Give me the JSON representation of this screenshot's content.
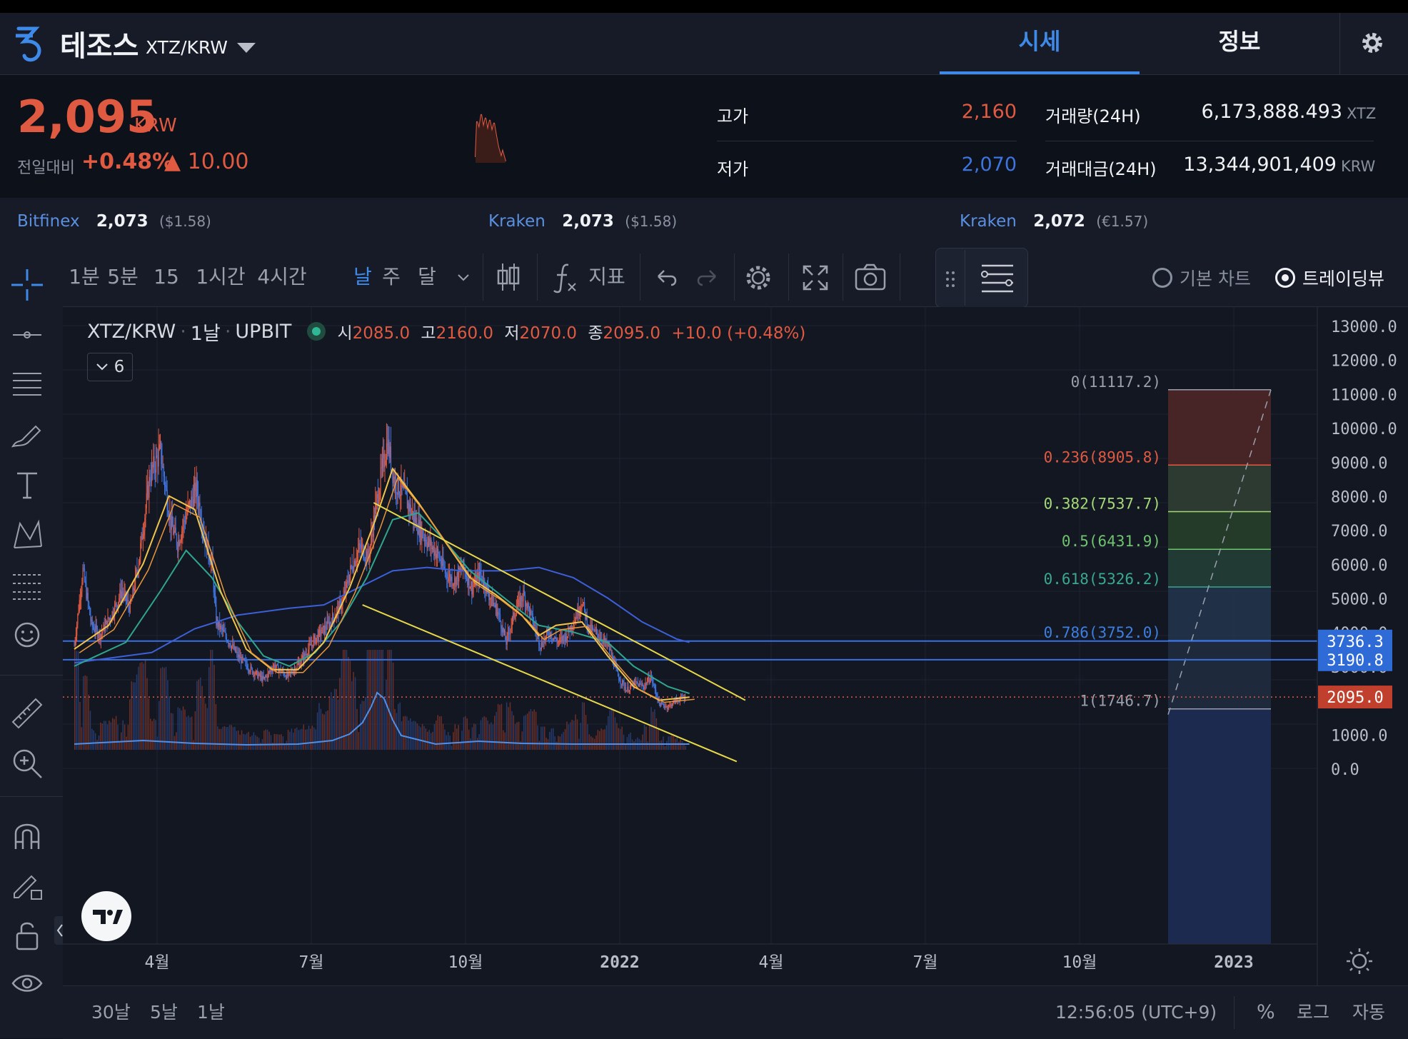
{
  "header": {
    "coin_name": "테조스",
    "pair": "XTZ/KRW",
    "tabs": [
      {
        "label": "시세",
        "active": true
      },
      {
        "label": "정보",
        "active": false
      }
    ],
    "icons": [
      "tezos-logo-icon",
      "chevron-down-icon",
      "gear-icon"
    ]
  },
  "ticker": {
    "price": "2,095",
    "currency": "KRW",
    "change_label": "전일대비",
    "change_pct": "+0.48%",
    "change_abs": "▲ 10.00",
    "high_label": "고가",
    "high": "2,160",
    "low_label": "저가",
    "low": "2,070",
    "volume_label": "거래량(24H)",
    "volume": "6,173,888.493",
    "volume_unit": "XTZ",
    "value_label": "거래대금(24H)",
    "value": "13,344,901,409",
    "value_unit": "KRW"
  },
  "exchanges": [
    {
      "name": "Bitfinex",
      "price": "2,073",
      "sub": "($1.58)"
    },
    {
      "name": "Kraken",
      "price": "2,073",
      "sub": "($1.58)"
    },
    {
      "name": "Kraken",
      "price": "2,072",
      "sub": "(€1.57)"
    }
  ],
  "toolbar": {
    "intervals": [
      "1분",
      "5분",
      "15분",
      "1시간",
      "4시간",
      "날",
      "주",
      "달"
    ],
    "active_interval": "날",
    "indicators_label": "지표",
    "modes": [
      {
        "label": "기본 차트",
        "selected": false
      },
      {
        "label": "트레이딩뷰",
        "selected": true
      }
    ]
  },
  "legend": {
    "symbol": "XTZ/KRW",
    "interval": "1날",
    "exchange": "UPBIT",
    "o_label": "시",
    "o": "2085.0",
    "h_label": "고",
    "h": "2160.0",
    "l_label": "저",
    "l": "2070.0",
    "c_label": "종",
    "c": "2095.0",
    "chg": "+10.0 (+0.48%)",
    "indicator_count": "6"
  },
  "bottombar": {
    "ranges": [
      "30날",
      "5날",
      "1날"
    ],
    "clock": "12:56:05 (UTC+9)",
    "percent": "%",
    "log": "로그",
    "auto": "자동"
  },
  "colors": {
    "up": "#e05a42",
    "down": "#3e74e0",
    "accent": "#2f6bd6",
    "trendline": "#e7d84a",
    "ma_short": "#f2c54a",
    "ma_mid": "#2fa58e",
    "ma_long": "#3d5fd8"
  },
  "chart_data": {
    "type": "candlestick",
    "price_axis": [
      "13000.0",
      "12000.0",
      "11000.0",
      "10000.0",
      "9000.0",
      "8000.0",
      "7000.0",
      "6000.0",
      "5000.0",
      "4000.0",
      "3000.0",
      "1000.0",
      "0.0"
    ],
    "ylim": [
      0,
      13000
    ],
    "time_axis": [
      "4월",
      "7월",
      "10월",
      "2022",
      "4월",
      "7월",
      "10월",
      "2023"
    ],
    "price_path": [
      [
        0,
        3600
      ],
      [
        10,
        5800
      ],
      [
        20,
        4200
      ],
      [
        30,
        3900
      ],
      [
        45,
        4600
      ],
      [
        55,
        5200
      ],
      [
        65,
        4700
      ],
      [
        75,
        6100
      ],
      [
        88,
        8600
      ],
      [
        100,
        9300
      ],
      [
        112,
        7200
      ],
      [
        120,
        6600
      ],
      [
        132,
        7600
      ],
      [
        142,
        8200
      ],
      [
        152,
        6700
      ],
      [
        160,
        6000
      ],
      [
        165,
        4300
      ],
      [
        178,
        3800
      ],
      [
        190,
        3300
      ],
      [
        205,
        2900
      ],
      [
        220,
        2600
      ],
      [
        232,
        3000
      ],
      [
        248,
        2700
      ],
      [
        262,
        3100
      ],
      [
        280,
        3800
      ],
      [
        298,
        4300
      ],
      [
        312,
        4900
      ],
      [
        322,
        5900
      ],
      [
        332,
        6500
      ],
      [
        342,
        6200
      ],
      [
        350,
        7600
      ],
      [
        358,
        8800
      ],
      [
        364,
        9600
      ],
      [
        372,
        8400
      ],
      [
        382,
        8100
      ],
      [
        392,
        7500
      ],
      [
        402,
        7000
      ],
      [
        412,
        6600
      ],
      [
        422,
        6300
      ],
      [
        432,
        5700
      ],
      [
        442,
        5500
      ],
      [
        452,
        5900
      ],
      [
        462,
        5300
      ],
      [
        472,
        5700
      ],
      [
        482,
        5100
      ],
      [
        492,
        4600
      ],
      [
        502,
        3700
      ],
      [
        512,
        4600
      ],
      [
        522,
        5100
      ],
      [
        532,
        4400
      ],
      [
        542,
        3600
      ],
      [
        552,
        4000
      ],
      [
        562,
        3700
      ],
      [
        572,
        3900
      ],
      [
        582,
        4400
      ],
      [
        590,
        4900
      ],
      [
        598,
        4100
      ],
      [
        610,
        3900
      ],
      [
        622,
        3500
      ],
      [
        632,
        2700
      ],
      [
        642,
        2300
      ],
      [
        652,
        2500
      ],
      [
        662,
        2400
      ],
      [
        670,
        2700
      ],
      [
        680,
        1900
      ],
      [
        690,
        1800
      ],
      [
        700,
        2000
      ],
      [
        710,
        2095
      ]
    ],
    "series": [
      {
        "name": "MA long",
        "values": [
          [
            0,
            3100
          ],
          [
            90,
            3400
          ],
          [
            140,
            4100
          ],
          [
            190,
            4500
          ],
          [
            250,
            4700
          ],
          [
            290,
            4800
          ],
          [
            330,
            5300
          ],
          [
            370,
            5800
          ],
          [
            410,
            5900
          ],
          [
            450,
            5800
          ],
          [
            500,
            5800
          ],
          [
            540,
            5900
          ],
          [
            580,
            5600
          ],
          [
            620,
            5000
          ],
          [
            660,
            4300
          ],
          [
            700,
            3800
          ],
          [
            715,
            3700
          ]
        ]
      },
      {
        "name": "MA mid",
        "values": [
          [
            0,
            3000
          ],
          [
            60,
            3700
          ],
          [
            100,
            5200
          ],
          [
            130,
            6400
          ],
          [
            160,
            5600
          ],
          [
            190,
            4300
          ],
          [
            220,
            3300
          ],
          [
            250,
            3000
          ],
          [
            280,
            3400
          ],
          [
            310,
            4300
          ],
          [
            340,
            5600
          ],
          [
            370,
            7300
          ],
          [
            400,
            7500
          ],
          [
            430,
            6700
          ],
          [
            460,
            5800
          ],
          [
            500,
            5000
          ],
          [
            540,
            4200
          ],
          [
            580,
            4000
          ],
          [
            620,
            3700
          ],
          [
            650,
            3000
          ],
          [
            690,
            2400
          ],
          [
            715,
            2200
          ]
        ]
      },
      {
        "name": "MA short",
        "values": [
          [
            0,
            3500
          ],
          [
            40,
            4200
          ],
          [
            80,
            6000
          ],
          [
            110,
            8000
          ],
          [
            140,
            7600
          ],
          [
            170,
            5200
          ],
          [
            200,
            3500
          ],
          [
            230,
            2900
          ],
          [
            260,
            2900
          ],
          [
            290,
            3700
          ],
          [
            320,
            5300
          ],
          [
            350,
            7300
          ],
          [
            370,
            8800
          ],
          [
            400,
            7800
          ],
          [
            430,
            6700
          ],
          [
            460,
            5600
          ],
          [
            490,
            5100
          ],
          [
            520,
            4500
          ],
          [
            540,
            3900
          ],
          [
            560,
            4200
          ],
          [
            590,
            4300
          ],
          [
            620,
            3300
          ],
          [
            650,
            2400
          ],
          [
            680,
            2000
          ],
          [
            715,
            2090
          ]
        ]
      }
    ],
    "horizontal_lines": [
      {
        "price": 3736.3,
        "label": "3736.3"
      },
      {
        "price": 3190.8,
        "label": "3190.8"
      },
      {
        "price": 2095.0,
        "label": "2095.0",
        "style": "dotted"
      }
    ],
    "trendlines": [
      {
        "from": [
          348,
          7800
        ],
        "to": [
          780,
          2000
        ]
      },
      {
        "from": [
          335,
          4800
        ],
        "to": [
          770,
          200
        ]
      }
    ],
    "fibonacci": [
      {
        "label": "0(11117.2)",
        "price": 11117.2,
        "color": "#9aa0ab"
      },
      {
        "label": "0.236(8905.8)",
        "price": 8905.8,
        "color": "#e05a42"
      },
      {
        "label": "0.382(7537.7)",
        "price": 7537.7,
        "color": "#a3d977"
      },
      {
        "label": "0.5(6431.9)",
        "price": 6431.9,
        "color": "#6fc36f"
      },
      {
        "label": "0.618(5326.2)",
        "price": 5326.2,
        "color": "#3aa88e"
      },
      {
        "label": "0.786(3752.0)",
        "price": 3752.0,
        "color": "#3d7fe0"
      },
      {
        "label": "1(1746.7)",
        "price": 1746.7,
        "color": "#9aa0ab"
      }
    ]
  }
}
